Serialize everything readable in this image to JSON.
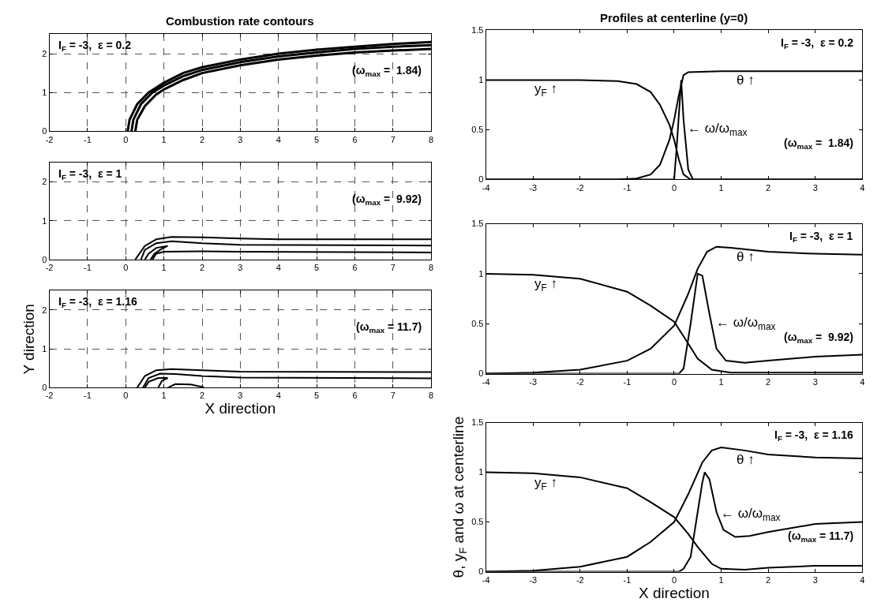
{
  "chart_data": [
    {
      "type": "line",
      "title": "Combustion rate contours",
      "xlim": [
        -2,
        8
      ],
      "ylim": [
        0,
        2.5
      ],
      "xticks": [
        -2,
        -1,
        0,
        1,
        2,
        3,
        4,
        5,
        6,
        7,
        8
      ],
      "yticks": [
        0,
        1,
        2
      ],
      "grid": true,
      "annotations": [
        "I$_{F}$ = -3,  ε = 0.2",
        "(ω$_{max}$ =  1.84)"
      ],
      "series": [
        {
          "color": "#000000",
          "x": [
            0.05,
            0.1,
            0.3,
            0.6,
            1,
            1.5,
            2,
            3,
            4,
            5,
            6,
            7,
            8
          ],
          "values": [
            0,
            0.3,
            0.7,
            1.0,
            1.25,
            1.5,
            1.65,
            1.85,
            2.0,
            2.1,
            2.18,
            2.25,
            2.3
          ]
        },
        {
          "color": "#000000",
          "x": [
            0.15,
            0.2,
            0.4,
            0.7,
            1,
            1.5,
            2,
            3,
            4,
            5,
            6,
            7,
            8
          ],
          "values": [
            0,
            0.3,
            0.7,
            1.0,
            1.18,
            1.42,
            1.58,
            1.78,
            1.93,
            2.03,
            2.12,
            2.18,
            2.22
          ]
        },
        {
          "color": "#000000",
          "x": [
            0.25,
            0.3,
            0.5,
            0.8,
            1,
            1.5,
            2,
            3,
            4,
            5,
            6,
            7,
            8
          ],
          "values": [
            0,
            0.3,
            0.65,
            0.95,
            1.08,
            1.32,
            1.5,
            1.7,
            1.85,
            1.95,
            2.03,
            2.08,
            2.12
          ]
        }
      ]
    },
    {
      "type": "line",
      "title": "Profiles at centerline (y=0)",
      "xlim": [
        -4,
        4
      ],
      "ylim": [
        0,
        1.5
      ],
      "xticks": [
        -4,
        -3,
        -2,
        -1,
        0,
        1,
        2,
        3,
        4
      ],
      "yticks": [
        0,
        0.5,
        1,
        1.5
      ],
      "annotations": [
        "I$_{F}$ = -3,  ε = 0.2",
        "(ω$_{max}$ =  1.84)",
        {
          "text": "y$_{F}$ ↑",
          "x": -3,
          "y": 1
        },
        {
          "text": "θ ↑",
          "x": 1.3,
          "y": 1.09
        },
        {
          "text": "← ω/ω$_{max}$",
          "x": 0.25,
          "y": 0.5
        }
      ],
      "series": [
        {
          "color": "#000000",
          "x": [
            -4,
            -2,
            -1.2,
            -0.8,
            -0.5,
            -0.3,
            -0.1,
            0,
            0.1,
            0.2,
            0.35,
            4
          ],
          "values": [
            1,
            1,
            0.99,
            0.96,
            0.88,
            0.75,
            0.55,
            0.4,
            0.2,
            0.05,
            0,
            0
          ]
        },
        {
          "color": "#000000",
          "x": [
            -4,
            -1.2,
            -0.8,
            -0.5,
            -0.3,
            -0.1,
            0,
            0.1,
            0.2,
            0.3,
            1,
            4
          ],
          "values": [
            0,
            0,
            0.01,
            0.05,
            0.15,
            0.4,
            0.6,
            0.85,
            1.05,
            1.08,
            1.09,
            1.09
          ]
        },
        {
          "color": "#000000",
          "x": [
            -4,
            0,
            0.05,
            0.15,
            0.2,
            0.3,
            0.4,
            4
          ],
          "values": [
            0,
            0,
            0.3,
            1.0,
            0.6,
            0.1,
            0,
            0
          ]
        }
      ]
    },
    {
      "type": "line",
      "xlim": [
        -2,
        8
      ],
      "ylim": [
        0,
        2.5
      ],
      "xticks": [
        -2,
        -1,
        0,
        1,
        2,
        3,
        4,
        5,
        6,
        7,
        8
      ],
      "yticks": [
        0,
        1,
        2
      ],
      "grid": true,
      "annotations": [
        "I$_{F}$ = -3,  ε = 1",
        "(ω$_{max}$ =  9.92)"
      ],
      "series": [
        {
          "color": "#000000",
          "x": [
            0.25,
            0.5,
            0.8,
            1.2,
            2,
            3,
            4,
            8
          ],
          "values": [
            0,
            0.35,
            0.52,
            0.58,
            0.57,
            0.54,
            0.52,
            0.52
          ]
        },
        {
          "color": "#000000",
          "x": [
            0.4,
            0.5,
            0.8,
            1.2,
            2,
            3,
            8
          ],
          "values": [
            0,
            0.25,
            0.42,
            0.47,
            0.42,
            0.38,
            0.36
          ]
        },
        {
          "color": "#000000",
          "x": [
            0.5,
            0.6,
            0.8,
            1.1,
            0.95,
            0.75,
            0.65
          ],
          "values": [
            0,
            0.15,
            0.3,
            0.35,
            0.28,
            0.15,
            0
          ]
        },
        {
          "color": "#000000",
          "x": [
            0.7,
            0.8,
            1.0,
            2,
            3,
            8
          ],
          "values": [
            0,
            0.15,
            0.2,
            0.21,
            0.2,
            0.18
          ]
        }
      ]
    },
    {
      "type": "line",
      "xlim": [
        -4,
        4
      ],
      "ylim": [
        0,
        1.5
      ],
      "xticks": [
        -4,
        -3,
        -2,
        -1,
        0,
        1,
        2,
        3,
        4
      ],
      "yticks": [
        0,
        0.5,
        1,
        1.5
      ],
      "annotations": [
        "I$_{F}$ = -3,  ε = 1",
        "(ω$_{max}$ =  9.92)",
        {
          "text": "y$_{F}$ ↑",
          "x": -3,
          "y": 0.99
        },
        {
          "text": "θ ↑",
          "x": 1.3,
          "y": 1.26
        },
        {
          "text": "← ω/ω$_{max}$",
          "x": 0.85,
          "y": 0.5
        }
      ],
      "series": [
        {
          "color": "#000000",
          "x": [
            -4,
            -3,
            -2,
            -1,
            -0.5,
            0,
            0.3,
            0.5,
            0.8,
            1.2,
            4
          ],
          "values": [
            1,
            0.99,
            0.95,
            0.82,
            0.68,
            0.52,
            0.3,
            0.15,
            0.04,
            0.01,
            0.01
          ]
        },
        {
          "color": "#000000",
          "x": [
            -4,
            -3,
            -2,
            -1,
            -0.5,
            0,
            0.3,
            0.5,
            0.7,
            0.9,
            1.2,
            2,
            3,
            4
          ],
          "values": [
            0,
            0.01,
            0.04,
            0.13,
            0.25,
            0.48,
            0.8,
            1.05,
            1.22,
            1.27,
            1.26,
            1.22,
            1.2,
            1.19
          ]
        },
        {
          "color": "#000000",
          "x": [
            -4,
            0.1,
            0.2,
            0.35,
            0.5,
            0.6,
            0.75,
            0.9,
            1.1,
            1.5,
            2,
            3,
            4
          ],
          "values": [
            0,
            0,
            0.05,
            0.5,
            1.0,
            0.98,
            0.6,
            0.25,
            0.13,
            0.11,
            0.13,
            0.17,
            0.19
          ]
        }
      ]
    },
    {
      "type": "line",
      "xlabel": "X direction",
      "ylabel": "Y direction",
      "xlim": [
        -2,
        8
      ],
      "ylim": [
        0,
        2.5
      ],
      "xticks": [
        -2,
        -1,
        0,
        1,
        2,
        3,
        4,
        5,
        6,
        7,
        8
      ],
      "yticks": [
        0,
        1,
        2
      ],
      "grid": true,
      "annotations": [
        "I$_{F}$ = -3,  ε = 1.16",
        "(ω$_{max}$ = 11.7)"
      ],
      "series": [
        {
          "color": "#000000",
          "x": [
            0.3,
            0.5,
            0.8,
            1.2,
            2,
            3,
            8
          ],
          "values": [
            0,
            0.3,
            0.45,
            0.48,
            0.45,
            0.41,
            0.4
          ]
        },
        {
          "color": "#000000",
          "x": [
            0.45,
            0.6,
            0.9,
            1.3,
            2,
            3,
            8
          ],
          "values": [
            0,
            0.25,
            0.36,
            0.35,
            0.3,
            0.26,
            0.24
          ]
        },
        {
          "color": "#000000",
          "x": [
            0.5,
            0.6,
            0.85,
            1.1,
            0.95,
            0.85
          ],
          "values": [
            0,
            0.15,
            0.25,
            0.25,
            0.18,
            0
          ]
        },
        {
          "color": "#000000",
          "x": [
            1.1,
            1.3,
            1.7,
            2,
            2.05
          ],
          "values": [
            0,
            0.09,
            0.08,
            0.02,
            0
          ]
        }
      ]
    },
    {
      "type": "line",
      "xlabel": "X direction",
      "ylabel": "θ, y$_{F}$ and ω at centerline",
      "xlim": [
        -4,
        4
      ],
      "ylim": [
        0,
        1.5
      ],
      "xticks": [
        -4,
        -3,
        -2,
        -1,
        0,
        1,
        2,
        3,
        4
      ],
      "yticks": [
        0,
        0.5,
        1,
        1.5
      ],
      "annotations": [
        "I$_{F}$ = -3,  ε = 1.16",
        "(ω$_{max}$ = 11.7)",
        {
          "text": "y$_{F}$ ↑",
          "x": -3,
          "y": 0.99
        },
        {
          "text": "θ ↑",
          "x": 1.3,
          "y": 1.22
        },
        {
          "text": "← ω/ω$_{max}$",
          "x": 0.95,
          "y": 0.58
        }
      ],
      "series": [
        {
          "color": "#000000",
          "x": [
            -4,
            -3,
            -2,
            -1,
            -0.5,
            0,
            0.3,
            0.5,
            0.8,
            1,
            1.5,
            2,
            3,
            4
          ],
          "values": [
            1,
            0.99,
            0.95,
            0.84,
            0.7,
            0.55,
            0.38,
            0.25,
            0.08,
            0.03,
            0.02,
            0.04,
            0.06,
            0.06
          ]
        },
        {
          "color": "#000000",
          "x": [
            -4,
            -3,
            -2,
            -1,
            -0.5,
            0,
            0.3,
            0.6,
            0.8,
            1,
            1.5,
            2,
            3,
            4
          ],
          "values": [
            0,
            0.01,
            0.05,
            0.15,
            0.3,
            0.5,
            0.78,
            1.1,
            1.22,
            1.25,
            1.22,
            1.18,
            1.15,
            1.14
          ]
        },
        {
          "color": "#000000",
          "x": [
            -4,
            0.1,
            0.2,
            0.35,
            0.5,
            0.6,
            0.65,
            0.75,
            0.9,
            1.05,
            1.3,
            1.6,
            2,
            3,
            4
          ],
          "values": [
            0,
            0,
            0.03,
            0.15,
            0.6,
            0.9,
            1.0,
            0.93,
            0.6,
            0.42,
            0.35,
            0.36,
            0.4,
            0.48,
            0.5
          ]
        }
      ]
    }
  ]
}
